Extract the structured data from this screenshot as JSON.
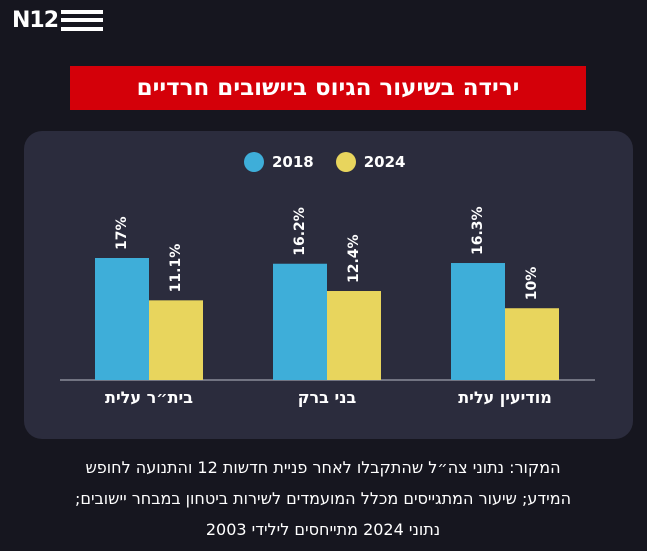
{
  "logo": {
    "text": "N12"
  },
  "title": "ירידה בשיעור הגיוס ביישובים חרדיים",
  "chart_data": {
    "type": "bar",
    "title": "ירידה בשיעור הגיוס ביישובים חרדיים",
    "categories": [
      "מודיעין עלית",
      "בני ברק",
      "בית״ר עלית"
    ],
    "series": [
      {
        "name": "2018",
        "color": "#3eaed9",
        "values": [
          16.3,
          16.2,
          17
        ],
        "labels": [
          "16.3%",
          "16.2%",
          "17%"
        ]
      },
      {
        "name": "2024",
        "color": "#e8d55d",
        "values": [
          10,
          12.4,
          11.1
        ],
        "labels": [
          "10%",
          "12.4%",
          "11.1%"
        ]
      }
    ],
    "ylim": [
      0,
      17
    ],
    "xlabel": "",
    "ylabel": "",
    "grid": false,
    "legend": "top-center"
  },
  "source": {
    "line1": "המקור: נתוני צה״ל שהתקבלו לאחר פניית חדשות 12 והתנועה לחופש",
    "line2": "המידע; שיעור המתגייסים מכלל המועמדים לשירות ביטחון במבחר יישובים;",
    "line3": "נתוני 2024 מתייחסים לילידי 2003"
  }
}
